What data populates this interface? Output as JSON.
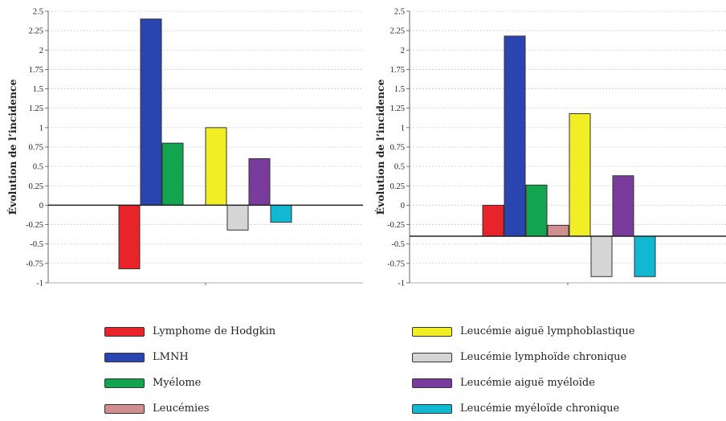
{
  "chart_data": [
    {
      "type": "bar",
      "title": "",
      "xlabel": "",
      "ylabel": "Évolution de l’incidence",
      "ylim": [
        -1,
        2.5
      ],
      "yticks": [
        "2.5",
        "2.25",
        "2",
        "1.75",
        "1.5",
        "1.25",
        "1",
        "0.75",
        "0.5",
        "0.25",
        "0",
        "-0.25",
        "-0.5",
        "-0.75",
        "-1"
      ],
      "baseline": 0,
      "grid": true,
      "categories": [
        "Lymphome de Hodgkin",
        "LMNH",
        "Myélome",
        "Leucémies",
        "Leucémie aiguë lymphoblastique",
        "Leucémie lymphoïde chronique",
        "Leucémie aiguë myéloïde",
        "Leucémie myéloïde chronique"
      ],
      "values": [
        -0.82,
        2.4,
        0.8,
        null,
        1.0,
        -0.32,
        0.6,
        -0.22
      ]
    },
    {
      "type": "bar",
      "title": "",
      "xlabel": "",
      "ylabel": "Évolution de l’incidence",
      "ylim": [
        -1,
        2.5
      ],
      "yticks": [
        "2.5",
        "2.25",
        "2",
        "1.75",
        "1.5",
        "1.25",
        "1",
        "0.75",
        "0.5",
        "0.25",
        "0",
        "-0.25",
        "-0.5",
        "-0.75",
        "-1"
      ],
      "baseline": -0.4,
      "grid": true,
      "categories": [
        "Lymphome de Hodgkin",
        "LMNH",
        "Myélome",
        "Leucémies",
        "Leucémie aiguë lymphoblastique",
        "Leucémie lymphoïde chronique",
        "Leucémie aiguë myéloïde",
        "Leucémie myéloïde chronique"
      ],
      "values": [
        0.0,
        2.18,
        0.26,
        -0.26,
        1.18,
        -0.92,
        0.38,
        -0.92
      ]
    }
  ],
  "legend": [
    {
      "label": "Lymphome de Hodgkin",
      "color": "#e8232a"
    },
    {
      "label": "LMNH",
      "color": "#2b45b0"
    },
    {
      "label": "Myélome",
      "color": "#12a44f"
    },
    {
      "label": "Leucémies",
      "color": "#cf8f8f"
    },
    {
      "label": "Leucémie aiguë lymphoblastique",
      "color": "#f2ee25"
    },
    {
      "label": "Leucémie lymphoïde chronique",
      "color": "#d5d5d5"
    },
    {
      "label": "Leucémie aiguë myéloïde",
      "color": "#7a3c9c"
    },
    {
      "label": "Leucémie myéloïde chronique",
      "color": "#12b7d1"
    }
  ]
}
